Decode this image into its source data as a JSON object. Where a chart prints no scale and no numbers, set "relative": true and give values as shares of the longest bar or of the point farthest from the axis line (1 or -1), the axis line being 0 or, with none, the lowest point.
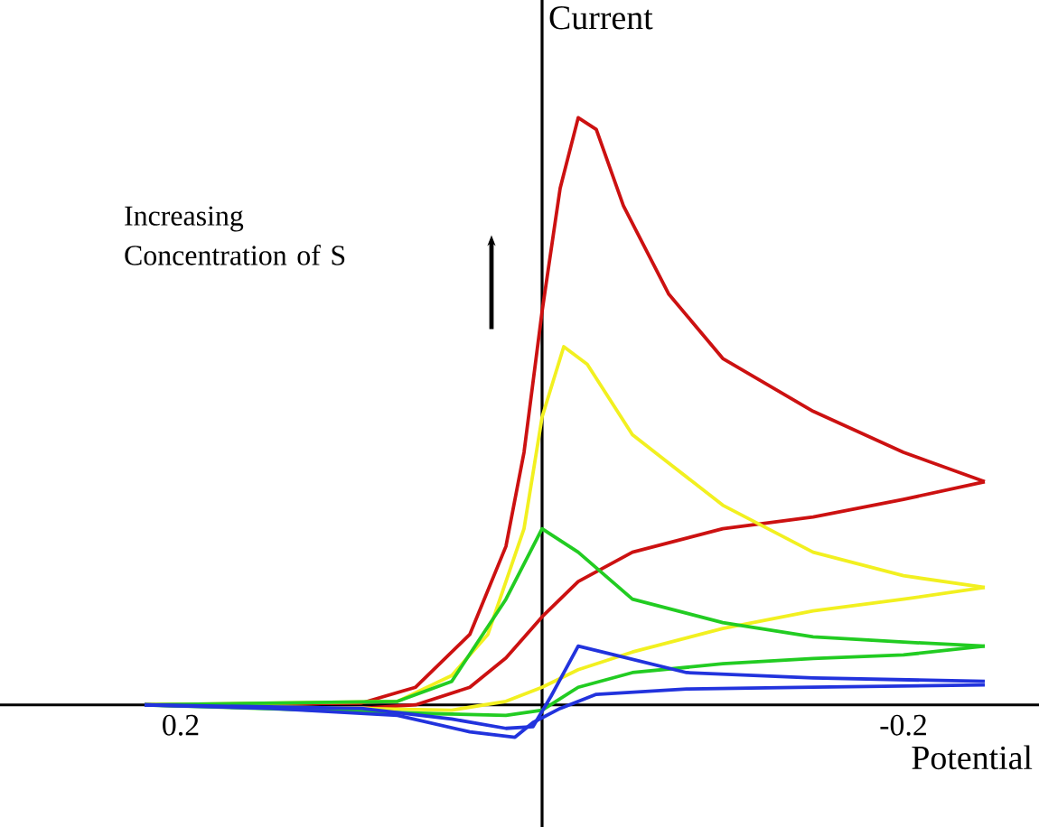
{
  "chart_data": {
    "type": "line",
    "relative": true,
    "xlim": [
      0.3,
      -0.275
    ],
    "xticks": [
      0.2,
      -0.2
    ],
    "xlabel": "Potential",
    "ylabel": "Current",
    "annotations": [
      "Increasing Concentration of S"
    ],
    "grid": false,
    "marker": "none",
    "line_style": "solid",
    "series": [
      {
        "color": "#cc1111",
        "x": [
          0.22,
          0.1,
          0.07,
          0.04,
          0.02,
          0.01,
          0.0,
          -0.01,
          -0.02,
          -0.03,
          -0.045,
          -0.07,
          -0.1,
          -0.15,
          -0.2,
          -0.245
        ],
        "values": [
          0,
          0.003,
          0.03,
          0.12,
          0.27,
          0.43,
          0.67,
          0.88,
          1.0,
          0.98,
          0.85,
          0.7,
          0.59,
          0.5,
          0.43,
          0.38
        ]
      },
      {
        "color": "#cc1111",
        "x": [
          -0.245,
          -0.2,
          -0.15,
          -0.1,
          -0.05,
          -0.02,
          0.0,
          0.02,
          0.04,
          0.07,
          0.1,
          0.15,
          0.22
        ],
        "values": [
          0.38,
          0.35,
          0.32,
          0.3,
          0.26,
          0.21,
          0.15,
          0.08,
          0.03,
          0,
          -0.006,
          null,
          0
        ]
      },
      {
        "color": "#f2f020",
        "x": [
          0.22,
          0.08,
          0.05,
          0.03,
          0.01,
          0.0,
          -0.012,
          -0.025,
          -0.05,
          -0.1,
          -0.15,
          -0.2,
          -0.245
        ],
        "values": [
          0,
          0.006,
          0.05,
          0.12,
          0.3,
          0.49,
          0.61,
          0.58,
          0.46,
          0.34,
          0.26,
          0.22,
          0.2
        ]
      },
      {
        "color": "#f2f020",
        "x": [
          -0.245,
          -0.2,
          -0.15,
          -0.1,
          -0.05,
          -0.02,
          0.0,
          0.02,
          0.05,
          0.1,
          0.22
        ],
        "values": [
          0.2,
          0.18,
          0.16,
          0.13,
          0.09,
          0.06,
          0.03,
          0.006,
          -0.009,
          -0.006,
          0
        ]
      },
      {
        "color": "#22cc22",
        "x": [
          0.22,
          0.08,
          0.05,
          0.02,
          0.0,
          -0.02,
          -0.05,
          -0.1,
          -0.15,
          -0.2,
          -0.245
        ],
        "values": [
          0,
          0.006,
          0.04,
          0.18,
          0.3,
          0.26,
          0.18,
          0.14,
          0.116,
          0.107,
          0.1
        ]
      },
      {
        "color": "#22cc22",
        "x": [
          -0.245,
          -0.2,
          -0.15,
          -0.1,
          -0.05,
          -0.02,
          0.0,
          0.02,
          0.06,
          0.22
        ],
        "values": [
          0.1,
          0.085,
          0.079,
          0.07,
          0.055,
          0.03,
          -0.009,
          -0.018,
          -0.015,
          0
        ]
      },
      {
        "color": "#2233dd",
        "x": [
          0.22,
          0.1,
          0.05,
          0.02,
          0.005,
          -0.005,
          -0.02,
          -0.04,
          -0.08,
          -0.15,
          -0.245
        ],
        "values": [
          0,
          -0.006,
          -0.024,
          -0.04,
          -0.037,
          0.015,
          0.1,
          0.085,
          0.055,
          0.046,
          0.04
        ]
      },
      {
        "color": "#2233dd",
        "x": [
          -0.245,
          -0.15,
          -0.08,
          -0.03,
          -0.01,
          0.005,
          0.015,
          0.04,
          0.08,
          0.15,
          0.22
        ],
        "values": [
          0.034,
          0.03,
          0.027,
          0.018,
          -0.006,
          -0.03,
          -0.055,
          -0.046,
          -0.018,
          -0.006,
          0
        ]
      }
    ]
  }
}
